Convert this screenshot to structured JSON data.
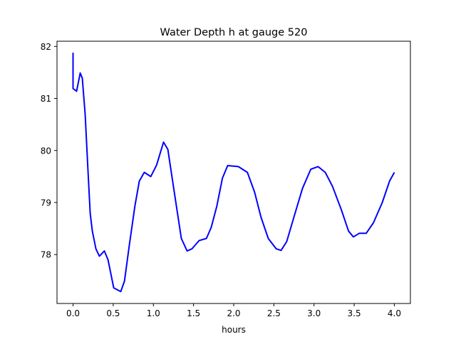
{
  "chart_data": {
    "type": "line",
    "title": "Water Depth h at gauge 520",
    "xlabel": "hours",
    "ylabel": "",
    "xlim": [
      -0.2,
      4.2
    ],
    "ylim": [
      77.06,
      82.1
    ],
    "xticks": [
      0.0,
      0.5,
      1.0,
      1.5,
      2.0,
      2.5,
      3.0,
      3.5,
      4.0
    ],
    "xtick_labels": [
      "0.0",
      "0.5",
      "1.0",
      "1.5",
      "2.0",
      "2.5",
      "3.0",
      "3.5",
      "4.0"
    ],
    "yticks": [
      78,
      79,
      80,
      81,
      82
    ],
    "ytick_labels": [
      "78",
      "79",
      "80",
      "81",
      "82"
    ],
    "grid": false,
    "series": [
      {
        "name": "h",
        "color": "#0000ff",
        "x": [
          0,
          0,
          0.044,
          0.089,
          0.115,
          0.15,
          0.186,
          0.213,
          0.24,
          0.284,
          0.328,
          0.39,
          0.435,
          0.506,
          0.594,
          0.64,
          0.7,
          0.77,
          0.825,
          0.887,
          0.967,
          1.04,
          1.126,
          1.18,
          1.26,
          1.348,
          1.42,
          1.48,
          1.57,
          1.66,
          1.72,
          1.79,
          1.86,
          1.925,
          2.058,
          2.17,
          2.26,
          2.34,
          2.43,
          2.53,
          2.59,
          2.66,
          2.75,
          2.856,
          2.96,
          3.05,
          3.14,
          3.23,
          3.34,
          3.43,
          3.49,
          3.565,
          3.65,
          3.74,
          3.85,
          3.94,
          4.0
        ],
        "y": [
          81.88,
          81.19,
          81.14,
          81.49,
          81.39,
          80.7,
          79.61,
          78.79,
          78.45,
          78.11,
          77.97,
          78.07,
          77.9,
          77.36,
          77.29,
          77.49,
          78.18,
          78.93,
          79.41,
          79.58,
          79.5,
          79.72,
          80.16,
          80.02,
          79.2,
          78.31,
          78.07,
          78.11,
          78.27,
          78.31,
          78.52,
          78.93,
          79.47,
          79.71,
          79.69,
          79.58,
          79.2,
          78.72,
          78.31,
          78.11,
          78.08,
          78.25,
          78.72,
          79.27,
          79.64,
          79.69,
          79.58,
          79.31,
          78.86,
          78.45,
          78.34,
          78.41,
          78.41,
          78.61,
          79.0,
          79.41,
          79.58
        ]
      }
    ]
  }
}
